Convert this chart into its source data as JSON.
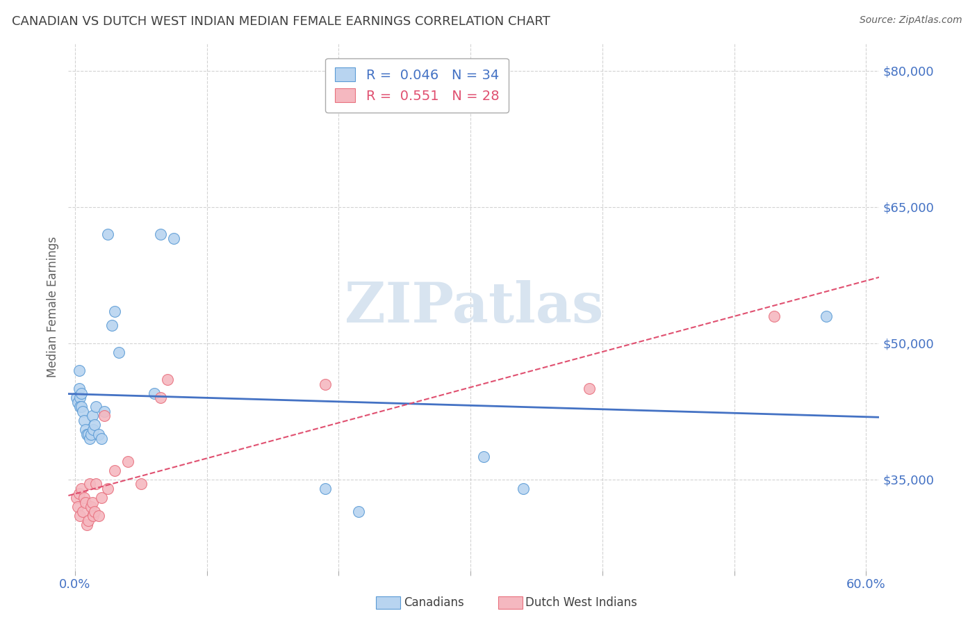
{
  "title": "CANADIAN VS DUTCH WEST INDIAN MEDIAN FEMALE EARNINGS CORRELATION CHART",
  "source": "Source: ZipAtlas.com",
  "ylabel": "Median Female Earnings",
  "xlim": [
    -0.005,
    0.61
  ],
  "ylim": [
    25000,
    83000
  ],
  "yticks": [
    35000,
    50000,
    65000,
    80000
  ],
  "ytick_labels": [
    "$35,000",
    "$50,000",
    "$65,000",
    "$80,000"
  ],
  "xticks": [
    0.0,
    0.1,
    0.2,
    0.3,
    0.4,
    0.5,
    0.6
  ],
  "xtick_labels": [
    "0.0%",
    "",
    "",
    "",
    "",
    "",
    "60.0%"
  ],
  "background_color": "#ffffff",
  "grid_color": "#c8c8c8",
  "canadians_color": "#b8d4f0",
  "dutch_color": "#f5b8c0",
  "canadians_edge_color": "#5b9bd5",
  "dutch_edge_color": "#e8707e",
  "canadians_line_color": "#4472c4",
  "dutch_line_color": "#e05070",
  "R_canadian": 0.046,
  "N_canadian": 34,
  "R_dutch": 0.551,
  "N_dutch": 28,
  "canadians_x": [
    0.001,
    0.002,
    0.003,
    0.003,
    0.004,
    0.004,
    0.005,
    0.005,
    0.006,
    0.007,
    0.008,
    0.009,
    0.01,
    0.011,
    0.012,
    0.013,
    0.014,
    0.015,
    0.016,
    0.018,
    0.02,
    0.022,
    0.025,
    0.028,
    0.03,
    0.033,
    0.06,
    0.065,
    0.075,
    0.19,
    0.215,
    0.31,
    0.34,
    0.57
  ],
  "canadians_y": [
    44000,
    43500,
    45000,
    47000,
    44000,
    43000,
    44500,
    43000,
    42500,
    41500,
    40500,
    40000,
    40000,
    39500,
    40000,
    42000,
    40500,
    41000,
    43000,
    40000,
    39500,
    42500,
    62000,
    52000,
    53500,
    49000,
    44500,
    62000,
    61500,
    34000,
    31500,
    37500,
    34000,
    53000
  ],
  "dutch_x": [
    0.001,
    0.002,
    0.003,
    0.004,
    0.005,
    0.006,
    0.007,
    0.008,
    0.009,
    0.01,
    0.011,
    0.012,
    0.013,
    0.014,
    0.015,
    0.016,
    0.018,
    0.02,
    0.022,
    0.025,
    0.03,
    0.04,
    0.05,
    0.065,
    0.07,
    0.19,
    0.39,
    0.53
  ],
  "dutch_y": [
    33000,
    32000,
    33500,
    31000,
    34000,
    31500,
    33000,
    32500,
    30000,
    30500,
    34500,
    32000,
    32500,
    31000,
    31500,
    34500,
    31000,
    33000,
    42000,
    34000,
    36000,
    37000,
    34500,
    44000,
    46000,
    45500,
    45000,
    53000
  ],
  "watermark": "ZIPatlas",
  "watermark_color": "#d8e4f0",
  "title_color": "#404040",
  "source_color": "#606060",
  "axis_label_color": "#4472c4",
  "dutch_label_color": "#e05070",
  "tick_color": "#4472c4",
  "ylabel_color": "#606060"
}
